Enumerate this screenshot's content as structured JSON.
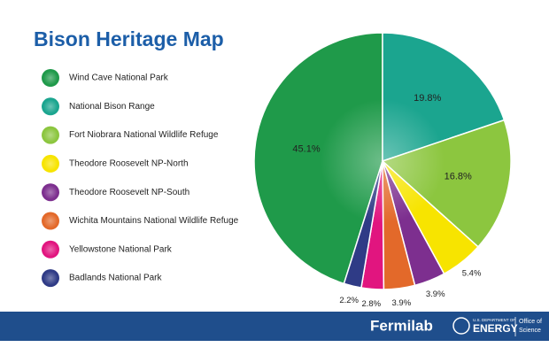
{
  "chart_data": {
    "type": "pie",
    "title": "Bison Heritage Map",
    "categories": [
      "Wind Cave National Park",
      "National Bison Range",
      "Fort Niobrara National Wildlife Refuge",
      "Theodore Roosevelt NP-North",
      "Theodore Roosevelt NP-South",
      "Wichita Mountains National Wildlife Refuge",
      "Yellowstone National Park",
      "Badlands National Park"
    ],
    "values": [
      45.1,
      19.8,
      16.8,
      5.4,
      3.9,
      3.9,
      2.8,
      2.2
    ],
    "value_labels": [
      "45.1%",
      "19.8%",
      "16.8%",
      "5.4%",
      "3.9%",
      "3.9%",
      "2.8%",
      "2.2%"
    ],
    "colors": [
      "#1f9a4a",
      "#1ba58f",
      "#8cc63f",
      "#f7e400",
      "#7d2f8f",
      "#e3692a",
      "#e1157f",
      "#2f3b86"
    ]
  },
  "footer": {
    "lab": "Fermilab",
    "doe_top": "U.S. DEPARTMENT OF",
    "doe": "ENERGY",
    "office1": "Office of",
    "office2": "Science"
  }
}
